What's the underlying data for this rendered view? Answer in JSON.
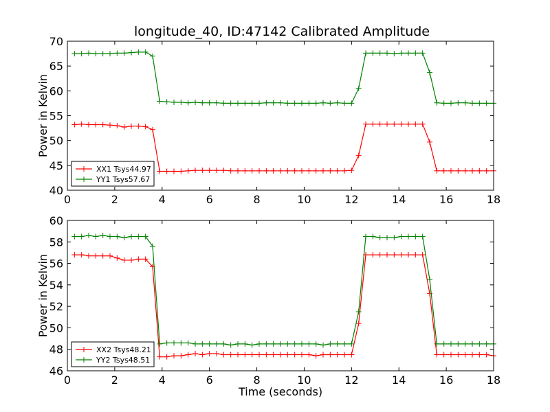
{
  "title": "longitude_40, ID:47142 Calibrated Amplitude",
  "colors": {
    "red": "#ff0000",
    "green": "#008000"
  },
  "chart_data": [
    {
      "type": "line",
      "ylabel": "Power in Kelvin",
      "xlabel": "",
      "xlim": [
        0,
        18
      ],
      "ylim": [
        40,
        70
      ],
      "xticks": [
        0,
        2,
        4,
        6,
        8,
        10,
        12,
        14,
        16,
        18
      ],
      "yticks": [
        40,
        45,
        50,
        55,
        60,
        65,
        70
      ],
      "grid": false,
      "legend_position": "lower-left",
      "x": [
        0.3,
        0.6,
        0.9,
        1.2,
        1.5,
        1.8,
        2.1,
        2.4,
        2.7,
        3.0,
        3.3,
        3.6,
        3.9,
        4.2,
        4.5,
        4.8,
        5.1,
        5.4,
        5.7,
        6.0,
        6.3,
        6.6,
        6.9,
        7.2,
        7.5,
        7.8,
        8.1,
        8.4,
        8.7,
        9.0,
        9.3,
        9.6,
        9.9,
        10.2,
        10.5,
        10.8,
        11.1,
        11.4,
        11.7,
        12.0,
        12.3,
        12.6,
        12.9,
        13.2,
        13.5,
        13.8,
        14.1,
        14.4,
        14.7,
        15.0,
        15.3,
        15.6,
        15.9,
        16.2,
        16.5,
        16.8,
        17.1,
        17.4,
        17.7,
        18.0
      ],
      "series": [
        {
          "name": "XX1 Tsys44.97",
          "color": "#ff0000",
          "values": [
            53.2,
            53.3,
            53.2,
            53.2,
            53.2,
            53.1,
            53.0,
            52.7,
            52.9,
            52.9,
            52.8,
            52.2,
            43.8,
            43.8,
            43.8,
            43.8,
            43.9,
            44.0,
            44.0,
            44.0,
            44.0,
            44.0,
            43.9,
            43.9,
            43.9,
            43.9,
            43.9,
            43.9,
            43.9,
            43.9,
            43.9,
            43.9,
            43.9,
            43.9,
            43.9,
            43.9,
            43.9,
            43.9,
            43.9,
            44.0,
            47.0,
            53.3,
            53.3,
            53.3,
            53.3,
            53.3,
            53.3,
            53.3,
            53.3,
            53.3,
            49.7,
            43.9,
            43.9,
            43.9,
            43.9,
            43.9,
            43.9,
            43.9,
            43.9,
            43.9
          ]
        },
        {
          "name": "YY1 Tsys57.67",
          "color": "#008000",
          "values": [
            67.5,
            67.5,
            67.6,
            67.5,
            67.5,
            67.5,
            67.6,
            67.6,
            67.7,
            67.8,
            67.8,
            67.0,
            57.9,
            57.8,
            57.7,
            57.7,
            57.6,
            57.7,
            57.6,
            57.6,
            57.6,
            57.5,
            57.5,
            57.5,
            57.5,
            57.5,
            57.5,
            57.6,
            57.6,
            57.6,
            57.5,
            57.5,
            57.5,
            57.5,
            57.5,
            57.6,
            57.5,
            57.6,
            57.5,
            57.5,
            60.5,
            67.6,
            67.6,
            67.6,
            67.6,
            67.5,
            67.6,
            67.6,
            67.6,
            67.6,
            63.7,
            57.6,
            57.5,
            57.5,
            57.6,
            57.6,
            57.5,
            57.5,
            57.5,
            57.5
          ]
        }
      ]
    },
    {
      "type": "line",
      "ylabel": "Power in Kelvin",
      "xlabel": "Time (seconds)",
      "xlim": [
        0,
        18
      ],
      "ylim": [
        46,
        60
      ],
      "xticks": [
        0,
        2,
        4,
        6,
        8,
        10,
        12,
        14,
        16,
        18
      ],
      "yticks": [
        46,
        48,
        50,
        52,
        54,
        56,
        58,
        60
      ],
      "grid": false,
      "legend_position": "lower-left",
      "x": [
        0.3,
        0.6,
        0.9,
        1.2,
        1.5,
        1.8,
        2.1,
        2.4,
        2.7,
        3.0,
        3.3,
        3.6,
        3.9,
        4.2,
        4.5,
        4.8,
        5.1,
        5.4,
        5.7,
        6.0,
        6.3,
        6.6,
        6.9,
        7.2,
        7.5,
        7.8,
        8.1,
        8.4,
        8.7,
        9.0,
        9.3,
        9.6,
        9.9,
        10.2,
        10.5,
        10.8,
        11.1,
        11.4,
        11.7,
        12.0,
        12.3,
        12.6,
        12.9,
        13.2,
        13.5,
        13.8,
        14.1,
        14.4,
        14.7,
        15.0,
        15.3,
        15.6,
        15.9,
        16.2,
        16.5,
        16.8,
        17.1,
        17.4,
        17.7,
        18.0
      ],
      "series": [
        {
          "name": "XX2 Tsys48.21",
          "color": "#ff0000",
          "values": [
            56.8,
            56.8,
            56.7,
            56.7,
            56.7,
            56.7,
            56.5,
            56.3,
            56.3,
            56.4,
            56.4,
            55.7,
            47.3,
            47.3,
            47.4,
            47.4,
            47.5,
            47.6,
            47.5,
            47.6,
            47.6,
            47.5,
            47.5,
            47.5,
            47.5,
            47.5,
            47.5,
            47.5,
            47.5,
            47.5,
            47.5,
            47.5,
            47.5,
            47.5,
            47.4,
            47.5,
            47.5,
            47.5,
            47.5,
            47.5,
            50.4,
            56.8,
            56.8,
            56.8,
            56.8,
            56.8,
            56.8,
            56.8,
            56.8,
            56.8,
            53.2,
            47.5,
            47.5,
            47.5,
            47.5,
            47.5,
            47.5,
            47.5,
            47.5,
            47.4
          ]
        },
        {
          "name": "YY2 Tsys48.51",
          "color": "#008000",
          "values": [
            58.5,
            58.5,
            58.6,
            58.5,
            58.6,
            58.5,
            58.5,
            58.4,
            58.5,
            58.5,
            58.5,
            57.6,
            48.5,
            48.6,
            48.6,
            48.6,
            48.6,
            48.5,
            48.5,
            48.5,
            48.5,
            48.5,
            48.4,
            48.5,
            48.5,
            48.4,
            48.5,
            48.5,
            48.5,
            48.5,
            48.5,
            48.5,
            48.5,
            48.5,
            48.5,
            48.4,
            48.5,
            48.5,
            48.5,
            48.5,
            51.5,
            58.5,
            58.5,
            58.4,
            58.4,
            58.4,
            58.5,
            58.5,
            58.5,
            58.5,
            54.5,
            48.5,
            48.5,
            48.5,
            48.5,
            48.5,
            48.5,
            48.5,
            48.5,
            48.5
          ]
        }
      ]
    }
  ]
}
